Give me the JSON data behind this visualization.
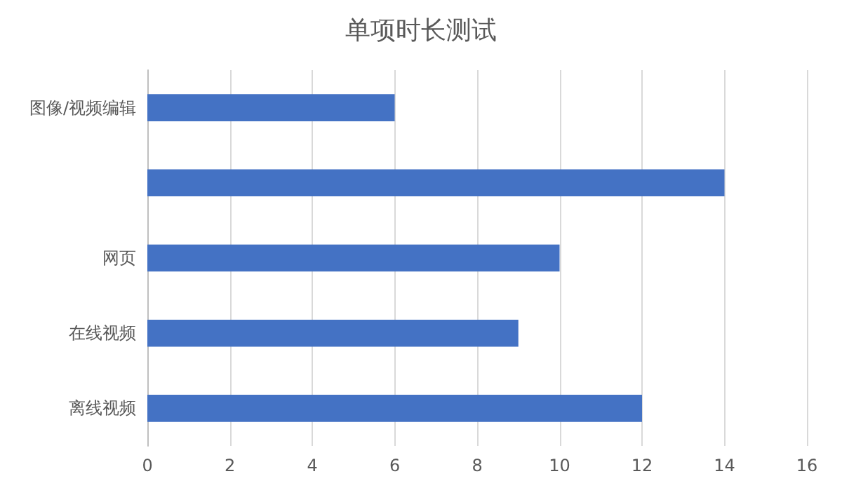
{
  "chart_data": {
    "type": "bar",
    "title": "单项时长测试",
    "orientation": "horizontal",
    "categories": [
      "图像/视频编辑",
      null,
      "网页",
      "在线视频",
      "离线视频"
    ],
    "values": [
      6,
      14,
      10,
      9,
      12
    ],
    "color": "#4472c4",
    "xlim": [
      0,
      16
    ],
    "xticks": [
      0,
      2,
      4,
      6,
      8,
      10,
      12,
      14,
      16
    ],
    "grid": "x"
  }
}
